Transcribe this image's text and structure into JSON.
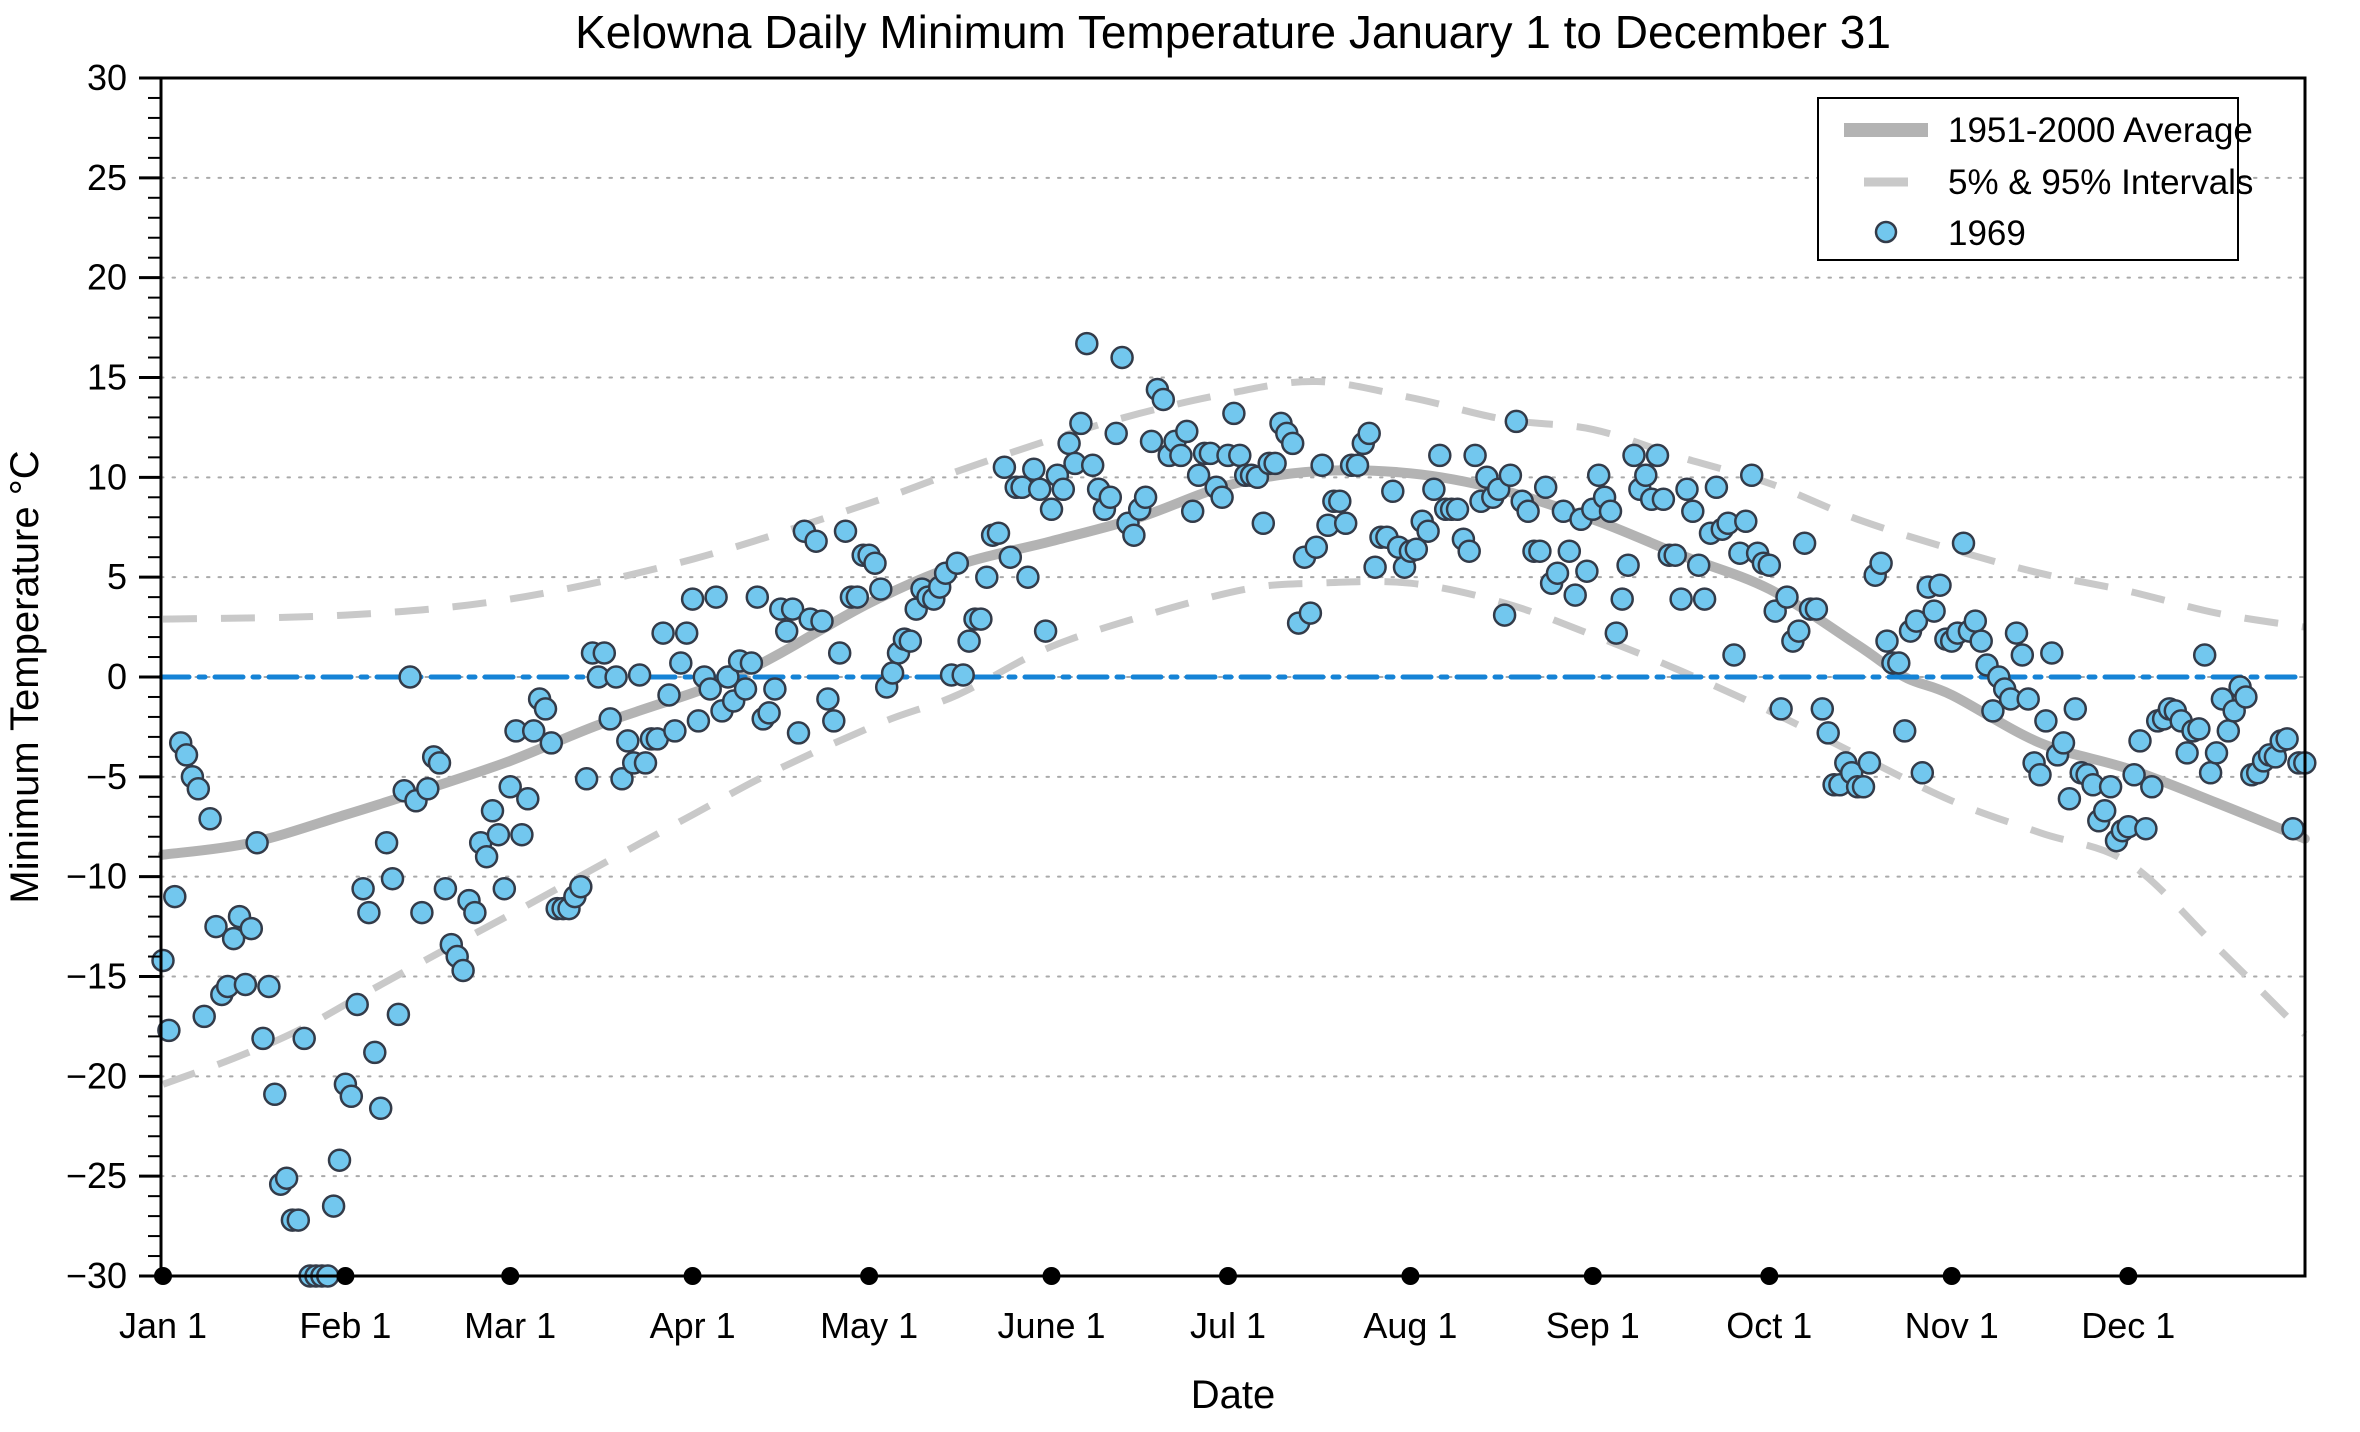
{
  "chart": {
    "title": "Kelowna Daily Minimum Temperature January 1 to December 31",
    "xlabel": "Date",
    "ylabel": "Minimum Temperature °C"
  },
  "legend": {
    "items": [
      {
        "label": "1951-2000 Average",
        "swatch": "thick-gray-line"
      },
      {
        "label": "5% & 95% Intervals",
        "swatch": "gray-dash"
      },
      {
        "label": "1969",
        "swatch": "blue-circle-marker"
      }
    ]
  },
  "colors": {
    "scatter_fill": "#72c7ee",
    "scatter_edge": "#333b49",
    "average_line": "#b3b3b3",
    "interval_dash": "#c9c9c9",
    "zero_line_blue": "#1583d6",
    "gridline": "#aaaaaa",
    "axis": "#000000",
    "background": "#ffffff"
  },
  "chart_data": {
    "type": "scatter",
    "title": "Kelowna Daily Minimum Temperature January 1 to December 31",
    "xlabel": "Date",
    "ylabel": "Minimum Temperature °C",
    "ylim": [
      -30,
      30
    ],
    "xlim_days": [
      0,
      365
    ],
    "grid": "horizontal-dotted-every-5C",
    "legend_position": "top-right",
    "yticks": [
      {
        "value": 30,
        "label": "30"
      },
      {
        "value": 25,
        "label": "25"
      },
      {
        "value": 20,
        "label": "20"
      },
      {
        "value": 15,
        "label": "15"
      },
      {
        "value": 10,
        "label": "10"
      },
      {
        "value": 5,
        "label": "5"
      },
      {
        "value": 0,
        "label": "0"
      },
      {
        "value": -5,
        "label": "−5"
      },
      {
        "value": -10,
        "label": "−10"
      },
      {
        "value": -15,
        "label": "−15"
      },
      {
        "value": -20,
        "label": "−20"
      },
      {
        "value": -25,
        "label": "−25"
      },
      {
        "value": -30,
        "label": "−30"
      }
    ],
    "xticks": [
      {
        "day": 0,
        "label": "Jan 1"
      },
      {
        "day": 31,
        "label": "Feb 1"
      },
      {
        "day": 59,
        "label": "Mar 1"
      },
      {
        "day": 90,
        "label": "Apr 1"
      },
      {
        "day": 120,
        "label": "May 1"
      },
      {
        "day": 151,
        "label": "June 1"
      },
      {
        "day": 181,
        "label": "Jul 1"
      },
      {
        "day": 212,
        "label": "Aug 1"
      },
      {
        "day": 243,
        "label": "Sep 1"
      },
      {
        "day": 273,
        "label": "Oct 1"
      },
      {
        "day": 304,
        "label": "Nov 1"
      },
      {
        "day": 334,
        "label": "Dec 1"
      }
    ],
    "zero_reference_line": 0,
    "average_1951_2000": {
      "name": "1951-2000 Average",
      "points": [
        [
          0,
          -8.9
        ],
        [
          15,
          -8.3
        ],
        [
          31,
          -6.9
        ],
        [
          45,
          -5.6
        ],
        [
          59,
          -4.2
        ],
        [
          74,
          -2.4
        ],
        [
          90,
          -0.8
        ],
        [
          97,
          0.0
        ],
        [
          105,
          1.2
        ],
        [
          120,
          3.7
        ],
        [
          135,
          5.6
        ],
        [
          151,
          6.8
        ],
        [
          166,
          8.0
        ],
        [
          181,
          9.6
        ],
        [
          196,
          10.3
        ],
        [
          212,
          10.2
        ],
        [
          227,
          9.4
        ],
        [
          243,
          7.9
        ],
        [
          258,
          6.1
        ],
        [
          273,
          4.4
        ],
        [
          288,
          1.6
        ],
        [
          296,
          0.0
        ],
        [
          304,
          -0.9
        ],
        [
          319,
          -3.3
        ],
        [
          334,
          -4.6
        ],
        [
          349,
          -6.3
        ],
        [
          364,
          -8.1
        ]
      ]
    },
    "interval_95": {
      "name": "95% Interval",
      "points": [
        [
          0,
          2.9
        ],
        [
          31,
          3.1
        ],
        [
          59,
          3.9
        ],
        [
          90,
          5.9
        ],
        [
          120,
          8.7
        ],
        [
          135,
          10.3
        ],
        [
          151,
          11.9
        ],
        [
          166,
          13.2
        ],
        [
          181,
          14.2
        ],
        [
          196,
          14.8
        ],
        [
          212,
          14.0
        ],
        [
          228,
          12.9
        ],
        [
          243,
          12.4
        ],
        [
          258,
          11.0
        ],
        [
          273,
          9.7
        ],
        [
          288,
          7.9
        ],
        [
          304,
          6.4
        ],
        [
          319,
          5.2
        ],
        [
          334,
          4.3
        ],
        [
          349,
          3.2
        ],
        [
          364,
          2.5
        ]
      ]
    },
    "interval_5": {
      "name": "5% Interval",
      "points": [
        [
          0,
          -20.4
        ],
        [
          12,
          -19.1
        ],
        [
          23,
          -17.7
        ],
        [
          34,
          -15.9
        ],
        [
          47,
          -13.8
        ],
        [
          59,
          -11.9
        ],
        [
          72,
          -9.8
        ],
        [
          90,
          -6.9
        ],
        [
          104,
          -4.7
        ],
        [
          122,
          -2.3
        ],
        [
          135,
          -0.9
        ],
        [
          150,
          1.4
        ],
        [
          166,
          3.0
        ],
        [
          184,
          4.4
        ],
        [
          196,
          4.7
        ],
        [
          212,
          4.7
        ],
        [
          228,
          3.7
        ],
        [
          243,
          2.1
        ],
        [
          258,
          0.3
        ],
        [
          273,
          -1.7
        ],
        [
          288,
          -3.9
        ],
        [
          304,
          -6.2
        ],
        [
          319,
          -7.8
        ],
        [
          334,
          -9.3
        ],
        [
          349,
          -13.5
        ],
        [
          364,
          -17.9
        ]
      ]
    },
    "series_1969": {
      "name": "1969",
      "note": "daily minimum temperature estimates read from plot; values of -30 are clipped at axis",
      "months": [
        {
          "month": "Jan",
          "values": [
            -14.2,
            -17.7,
            -11.0,
            -3.3,
            -3.9,
            -5.0,
            -5.6,
            -17.0,
            -7.1,
            -12.5,
            -15.9,
            -15.5,
            -13.1,
            -12.0,
            -15.4,
            -12.6,
            -8.3,
            -18.1,
            -15.5,
            -20.9,
            -25.4,
            -25.1,
            -27.2,
            -27.2,
            -18.1,
            -30,
            -30,
            -30,
            -30,
            -26.5,
            -24.2
          ]
        },
        {
          "month": "Feb",
          "values": [
            -20.4,
            -21.0,
            -16.4,
            -10.6,
            -11.8,
            -18.8,
            -21.6,
            -8.3,
            -10.1,
            -16.9,
            -5.7,
            0.0,
            -6.2,
            -11.8,
            -5.6,
            -4.0,
            -4.3,
            -10.6,
            -13.4,
            -14.0,
            -14.7,
            -11.2,
            -11.8,
            -8.3,
            -9.0,
            -6.7,
            -7.9,
            -10.6
          ]
        },
        {
          "month": "Mar",
          "values": [
            -5.5,
            -2.7,
            -7.9,
            -6.1,
            -2.7,
            -1.1,
            -1.6,
            -3.3,
            -11.6,
            -11.6,
            -11.6,
            -11.0,
            -10.5,
            -5.1,
            1.2,
            0.0,
            1.2,
            -2.1,
            0.0,
            -5.1,
            -3.2,
            -4.3,
            0.1,
            -4.3,
            -3.1,
            -3.1,
            2.2,
            -0.9,
            -2.7,
            0.7,
            2.2
          ]
        },
        {
          "month": "Apr",
          "values": [
            3.9,
            -2.2,
            0.0,
            -0.6,
            4.0,
            -1.7,
            0.0,
            -1.2,
            0.8,
            -0.6,
            0.7,
            4.0,
            -2.1,
            -1.8,
            -0.6,
            3.4,
            2.3,
            3.4,
            -2.8,
            7.3,
            2.9,
            6.8,
            2.8,
            -1.1,
            -2.2,
            1.2,
            7.3,
            4.0,
            4.0,
            6.1
          ]
        },
        {
          "month": "May",
          "values": [
            6.1,
            5.7,
            4.4,
            -0.5,
            0.2,
            1.2,
            1.9,
            1.8,
            3.4,
            4.4,
            4.0,
            3.9,
            4.5,
            5.2,
            0.1,
            5.7,
            0.1,
            1.8,
            2.9,
            2.9,
            5.0,
            7.1,
            7.2,
            10.5,
            6.0,
            9.5,
            9.5,
            5.0,
            10.4,
            9.4,
            2.3
          ]
        },
        {
          "month": "Jun",
          "values": [
            8.4,
            10.1,
            9.4,
            11.7,
            10.7,
            12.7,
            16.7,
            10.6,
            9.4,
            8.4,
            9.0,
            12.2,
            16.0,
            7.7,
            7.1,
            8.4,
            9.0,
            11.8,
            14.4,
            13.9,
            11.1,
            11.8,
            11.1,
            12.3,
            8.3,
            10.1,
            11.2,
            11.2,
            9.5,
            9.0
          ]
        },
        {
          "month": "Jul",
          "values": [
            11.1,
            13.2,
            11.1,
            10.1,
            10.1,
            10.0,
            7.7,
            10.7,
            10.7,
            12.7,
            12.2,
            11.7,
            2.7,
            6.0,
            3.2,
            6.5,
            10.6,
            7.6,
            8.8,
            8.8,
            7.7,
            10.6,
            10.6,
            11.7,
            12.2,
            5.5,
            7.0,
            7.0,
            9.3,
            6.5,
            5.5
          ]
        },
        {
          "month": "Aug",
          "values": [
            6.3,
            6.4,
            7.8,
            7.3,
            9.4,
            11.1,
            8.4,
            8.4,
            8.4,
            6.9,
            6.3,
            11.1,
            8.8,
            10.0,
            9.0,
            9.4,
            3.1,
            10.1,
            12.8,
            8.8,
            8.3,
            6.3,
            6.3,
            9.5,
            4.7,
            5.2,
            8.3,
            6.3,
            4.1,
            7.9,
            5.3
          ]
        },
        {
          "month": "Sep",
          "values": [
            8.4,
            10.1,
            9.0,
            8.3,
            2.2,
            3.9,
            5.6,
            11.1,
            9.4,
            10.1,
            8.9,
            11.1,
            8.9,
            6.1,
            6.1,
            3.9,
            9.4,
            8.3,
            5.6,
            3.9,
            7.2,
            9.5,
            7.4,
            7.7,
            1.1,
            6.2,
            7.8,
            10.1,
            6.2,
            5.7
          ]
        },
        {
          "month": "Oct",
          "values": [
            5.6,
            3.3,
            -1.6,
            4.0,
            1.8,
            2.3,
            6.7,
            3.4,
            3.4,
            -1.6,
            -2.8,
            -5.4,
            -5.4,
            -4.3,
            -4.8,
            -5.5,
            -5.5,
            -4.3,
            5.1,
            5.7,
            1.8,
            0.7,
            0.7,
            -2.7,
            2.3,
            2.8,
            -4.8,
            4.5,
            3.3,
            4.6,
            1.9
          ]
        },
        {
          "month": "Nov",
          "values": [
            1.8,
            2.2,
            6.7,
            2.3,
            2.8,
            1.8,
            0.6,
            -1.7,
            0.0,
            -0.6,
            -1.1,
            2.2,
            1.1,
            -1.1,
            -4.3,
            -4.9,
            -2.2,
            1.2,
            -3.9,
            -3.3,
            -6.1,
            -1.6,
            -4.8,
            -4.9,
            -5.4,
            -7.2,
            -6.7,
            -5.5,
            -8.2,
            -7.7
          ]
        },
        {
          "month": "Dec",
          "values": [
            -7.5,
            -4.9,
            -3.2,
            -7.6,
            -5.5,
            -2.2,
            -2.1,
            -1.6,
            -1.7,
            -2.2,
            -3.8,
            -2.7,
            -2.6,
            1.1,
            -4.8,
            -3.8,
            -1.1,
            -2.7,
            -1.7,
            -0.5,
            -1.0,
            -4.9,
            -4.8,
            -4.2,
            -3.9,
            -4.0,
            -3.2,
            -3.1,
            -7.6,
            -4.3,
            -4.3
          ]
        }
      ]
    }
  }
}
